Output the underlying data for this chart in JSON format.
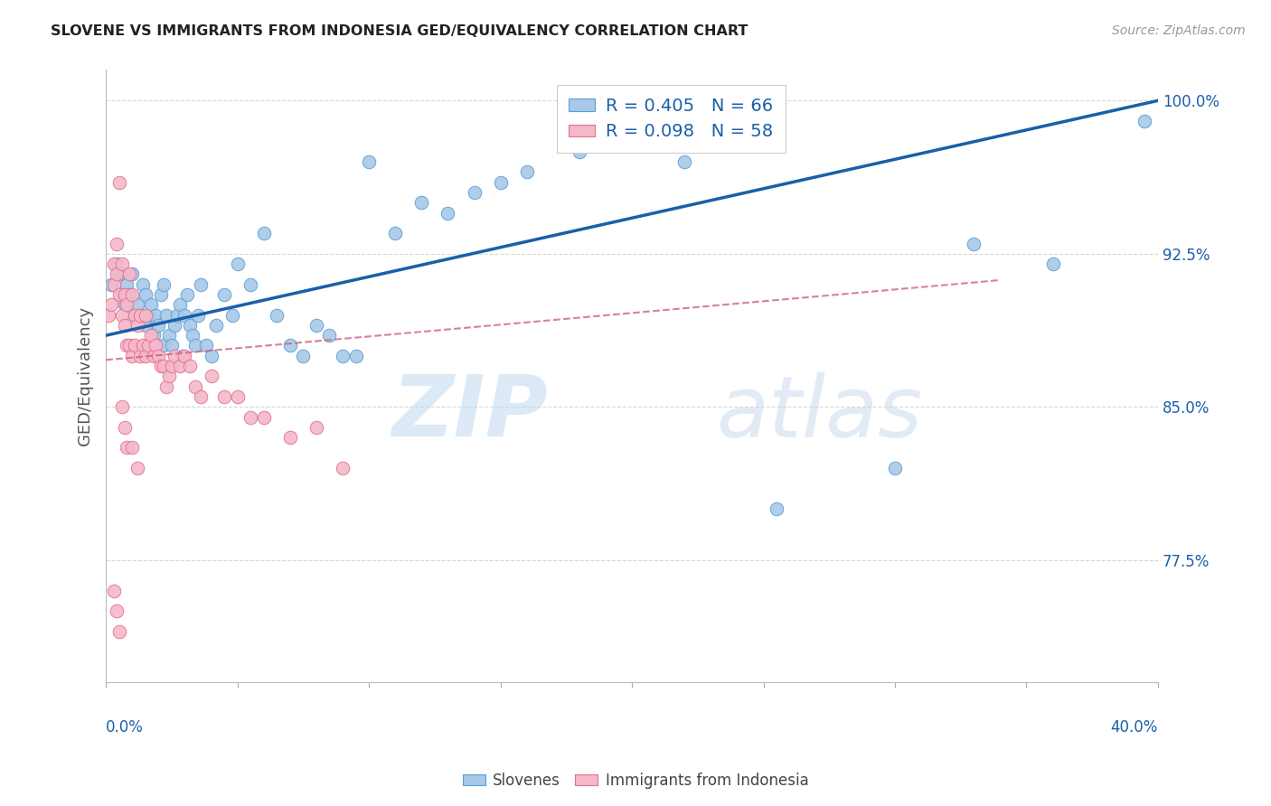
{
  "title": "SLOVENE VS IMMIGRANTS FROM INDONESIA GED/EQUIVALENCY CORRELATION CHART",
  "source": "Source: ZipAtlas.com",
  "ylabel": "GED/Equivalency",
  "ytick_labels": [
    "77.5%",
    "85.0%",
    "92.5%",
    "100.0%"
  ],
  "ytick_values": [
    0.775,
    0.85,
    0.925,
    1.0
  ],
  "xmin": 0.0,
  "xmax": 0.4,
  "ymin": 0.715,
  "ymax": 1.015,
  "legend_blue_r": "R = 0.405",
  "legend_blue_n": "N = 66",
  "legend_pink_r": "R = 0.098",
  "legend_pink_n": "N = 58",
  "blue_color": "#a8c8e8",
  "blue_line_color": "#1a5faa",
  "blue_edge_color": "#5a9fd4",
  "pink_color": "#f5b8c8",
  "pink_line_color": "#d06080",
  "pink_edge_color": "#e07090",
  "blue_line_slope": 0.2875,
  "blue_line_intercept": 0.885,
  "pink_line_slope": 0.115,
  "pink_line_intercept": 0.873,
  "pink_line_xmax": 0.34,
  "blue_scatter_x": [
    0.002,
    0.004,
    0.005,
    0.006,
    0.007,
    0.008,
    0.009,
    0.01,
    0.011,
    0.012,
    0.013,
    0.014,
    0.015,
    0.015,
    0.016,
    0.017,
    0.018,
    0.019,
    0.02,
    0.021,
    0.022,
    0.022,
    0.023,
    0.024,
    0.025,
    0.026,
    0.027,
    0.028,
    0.029,
    0.03,
    0.031,
    0.032,
    0.033,
    0.034,
    0.035,
    0.036,
    0.038,
    0.04,
    0.042,
    0.045,
    0.048,
    0.05,
    0.055,
    0.06,
    0.065,
    0.07,
    0.075,
    0.08,
    0.085,
    0.09,
    0.095,
    0.1,
    0.11,
    0.12,
    0.13,
    0.14,
    0.15,
    0.16,
    0.18,
    0.2,
    0.22,
    0.255,
    0.3,
    0.33,
    0.36,
    0.395
  ],
  "blue_scatter_y": [
    0.91,
    0.92,
    0.915,
    0.905,
    0.9,
    0.91,
    0.905,
    0.915,
    0.895,
    0.9,
    0.895,
    0.91,
    0.905,
    0.89,
    0.895,
    0.9,
    0.885,
    0.895,
    0.89,
    0.905,
    0.91,
    0.88,
    0.895,
    0.885,
    0.88,
    0.89,
    0.895,
    0.9,
    0.875,
    0.895,
    0.905,
    0.89,
    0.885,
    0.88,
    0.895,
    0.91,
    0.88,
    0.875,
    0.89,
    0.905,
    0.895,
    0.92,
    0.91,
    0.935,
    0.895,
    0.88,
    0.875,
    0.89,
    0.885,
    0.875,
    0.875,
    0.97,
    0.935,
    0.95,
    0.945,
    0.955,
    0.96,
    0.965,
    0.975,
    0.98,
    0.97,
    0.8,
    0.82,
    0.93,
    0.92,
    0.99
  ],
  "pink_scatter_x": [
    0.001,
    0.002,
    0.003,
    0.003,
    0.004,
    0.004,
    0.005,
    0.005,
    0.006,
    0.006,
    0.007,
    0.007,
    0.008,
    0.008,
    0.009,
    0.009,
    0.01,
    0.01,
    0.011,
    0.011,
    0.012,
    0.013,
    0.013,
    0.014,
    0.015,
    0.015,
    0.016,
    0.017,
    0.018,
    0.019,
    0.02,
    0.021,
    0.022,
    0.023,
    0.024,
    0.025,
    0.026,
    0.028,
    0.03,
    0.032,
    0.034,
    0.036,
    0.04,
    0.045,
    0.05,
    0.055,
    0.06,
    0.07,
    0.08,
    0.09,
    0.003,
    0.004,
    0.005,
    0.006,
    0.007,
    0.008,
    0.01,
    0.012
  ],
  "pink_scatter_y": [
    0.895,
    0.9,
    0.92,
    0.91,
    0.93,
    0.915,
    0.96,
    0.905,
    0.895,
    0.92,
    0.905,
    0.89,
    0.9,
    0.88,
    0.88,
    0.915,
    0.875,
    0.905,
    0.895,
    0.88,
    0.89,
    0.875,
    0.895,
    0.88,
    0.875,
    0.895,
    0.88,
    0.885,
    0.875,
    0.88,
    0.875,
    0.87,
    0.87,
    0.86,
    0.865,
    0.87,
    0.875,
    0.87,
    0.875,
    0.87,
    0.86,
    0.855,
    0.865,
    0.855,
    0.855,
    0.845,
    0.845,
    0.835,
    0.84,
    0.82,
    0.76,
    0.75,
    0.74,
    0.85,
    0.84,
    0.83,
    0.83,
    0.82
  ],
  "watermark_zip": "ZIP",
  "watermark_atlas": "atlas",
  "background_color": "#ffffff",
  "grid_color": "#d8d8d8"
}
